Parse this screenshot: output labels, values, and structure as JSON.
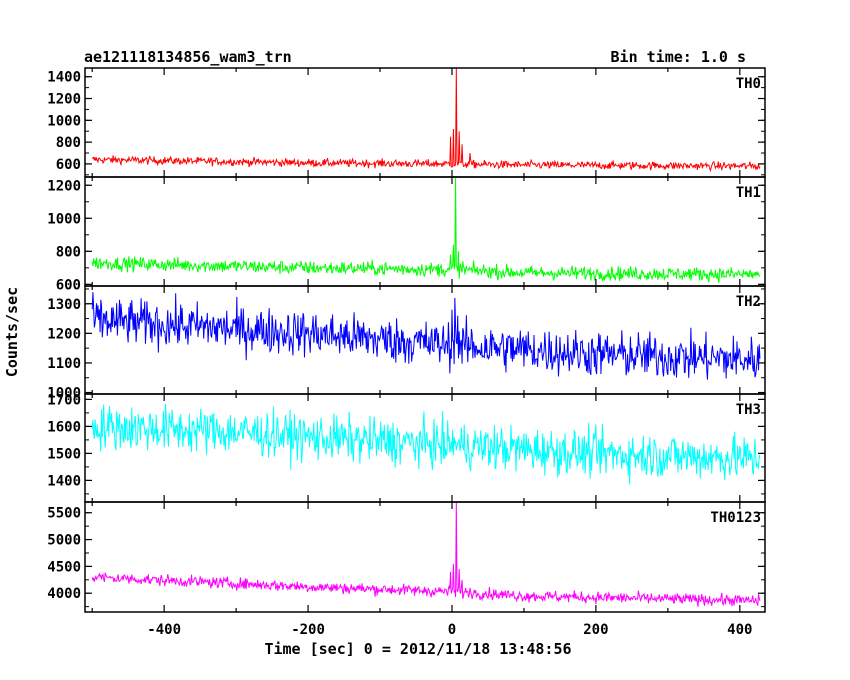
{
  "header": {
    "left_title": "ae121118134856_wam3_trn",
    "right_title": "Bin time: 1.0 s"
  },
  "chart_data": {
    "type": "line",
    "xlabel": "Time [sec] 0 = 2012/11/18 13:48:56",
    "ylabel": "Counts/sec",
    "xlim": [
      -510,
      435
    ],
    "xticks": [
      -400,
      -200,
      0,
      200,
      400
    ],
    "x_range": [
      -500,
      428
    ],
    "panels": [
      {
        "name": "TH0",
        "color": "#ff0000",
        "ylim": [
          480,
          1480
        ],
        "yticks": [
          600,
          800,
          1000,
          1200,
          1400
        ],
        "baseline": [
          [
            -500,
            640
          ],
          [
            -200,
            610
          ],
          [
            0,
            600
          ],
          [
            100,
            590
          ],
          [
            428,
            580
          ]
        ],
        "noise": 26,
        "peaks": [
          [
            -2,
            850
          ],
          [
            2,
            920
          ],
          [
            6,
            1480
          ],
          [
            10,
            900
          ],
          [
            14,
            780
          ],
          [
            25,
            700
          ]
        ]
      },
      {
        "name": "TH1",
        "color": "#00ff00",
        "ylim": [
          590,
          1250
        ],
        "yticks": [
          600,
          800,
          1000,
          1200
        ],
        "baseline": [
          [
            -500,
            730
          ],
          [
            -200,
            700
          ],
          [
            0,
            690
          ],
          [
            100,
            670
          ],
          [
            428,
            660
          ]
        ],
        "noise": 30,
        "peaks": [
          [
            -2,
            780
          ],
          [
            2,
            840
          ],
          [
            5,
            1250
          ],
          [
            9,
            800
          ],
          [
            15,
            740
          ]
        ]
      },
      {
        "name": "TH2",
        "color": "#0000ff",
        "ylim": [
          995,
          1360
        ],
        "yticks": [
          1000,
          1100,
          1200,
          1300
        ],
        "baseline": [
          [
            -500,
            1245
          ],
          [
            -300,
            1215
          ],
          [
            -200,
            1200
          ],
          [
            0,
            1160
          ],
          [
            200,
            1130
          ],
          [
            428,
            1110
          ]
        ],
        "noise": 55,
        "peaks": [
          [
            0,
            1280
          ],
          [
            4,
            1320
          ],
          [
            8,
            1260
          ]
        ]
      },
      {
        "name": "TH3",
        "color": "#00ffff",
        "ylim": [
          1320,
          1720
        ],
        "yticks": [
          1400,
          1500,
          1600,
          1700
        ],
        "baseline": [
          [
            -500,
            1600
          ],
          [
            -300,
            1580
          ],
          [
            -200,
            1560
          ],
          [
            0,
            1530
          ],
          [
            200,
            1500
          ],
          [
            428,
            1480
          ]
        ],
        "noise": 60,
        "peaks": [
          [
            3,
            1560
          ]
        ]
      },
      {
        "name": "TH0123",
        "color": "#ff00ff",
        "ylim": [
          3650,
          5700
        ],
        "yticks": [
          4000,
          4500,
          5000,
          5500
        ],
        "baseline": [
          [
            -500,
            4300
          ],
          [
            -200,
            4120
          ],
          [
            0,
            4030
          ],
          [
            100,
            3950
          ],
          [
            428,
            3860
          ]
        ],
        "noise": 75,
        "peaks": [
          [
            -2,
            4400
          ],
          [
            2,
            4550
          ],
          [
            6,
            5700
          ],
          [
            10,
            4450
          ],
          [
            14,
            4250
          ],
          [
            25,
            4100
          ]
        ]
      }
    ]
  }
}
